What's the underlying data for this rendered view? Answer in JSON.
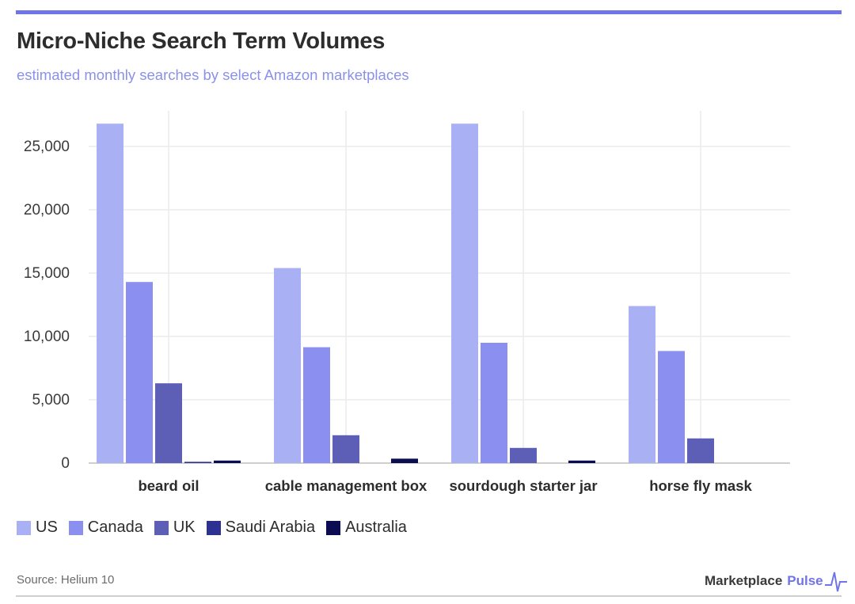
{
  "header": {
    "title": "Micro-Niche Search Term Volumes",
    "subtitle": "estimated monthly searches by select Amazon marketplaces"
  },
  "chart_data": {
    "type": "bar",
    "title": "Micro-Niche Search Term Volumes",
    "subtitle": "estimated monthly searches by select Amazon marketplaces",
    "xlabel": "",
    "ylabel": "",
    "categories": [
      "beard oil",
      "cable management box",
      "sourdough starter jar",
      "horse fly mask"
    ],
    "series": [
      {
        "name": "US",
        "color": "#aab0f4",
        "values": [
          26800,
          15400,
          26800,
          12400
        ]
      },
      {
        "name": "Canada",
        "color": "#8a8ff0",
        "values": [
          14300,
          9150,
          9500,
          8850
        ]
      },
      {
        "name": "UK",
        "color": "#5c5fb5",
        "values": [
          6300,
          2200,
          1200,
          1950
        ]
      },
      {
        "name": "Saudi Arabia",
        "color": "#2d3192",
        "values": [
          100,
          0,
          0,
          0
        ]
      },
      {
        "name": "Australia",
        "color": "#0b0c52",
        "values": [
          200,
          350,
          200,
          0
        ]
      }
    ],
    "ylim": [
      0,
      27500
    ],
    "yticks": [
      0,
      5000,
      10000,
      15000,
      20000,
      25000
    ],
    "ytick_labels": [
      "0",
      "5,000",
      "10,000",
      "15,000",
      "20,000",
      "25,000"
    ],
    "grid": true,
    "legend_position": "bottom-left"
  },
  "legend": [
    "US",
    "Canada",
    "UK",
    "Saudi Arabia",
    "Australia"
  ],
  "footer": {
    "source": "Source: Helium 10",
    "brand_part1": "Marketplace",
    "brand_part2": "Pulse"
  }
}
